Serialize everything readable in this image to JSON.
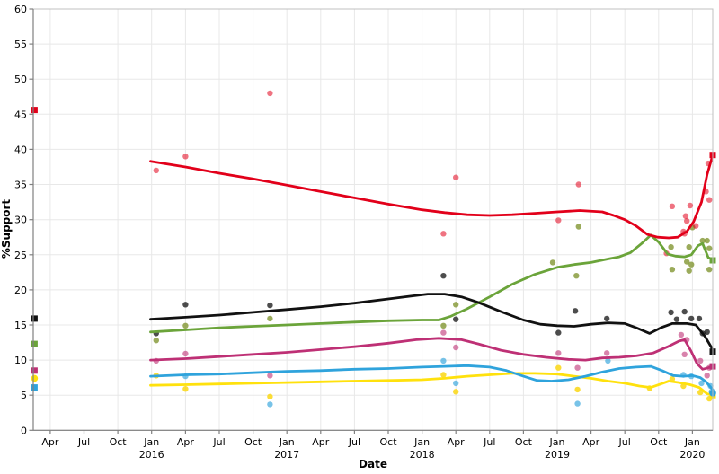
{
  "chart_data": {
    "type": "line",
    "title": "",
    "xlabel": "Date",
    "ylabel": "%Support",
    "x_unit_note": "x positions are months since Jan 2015",
    "x_domain": [
      1.49,
      61.8
    ],
    "ylim": [
      0,
      60
    ],
    "y_ticks": [
      0,
      5,
      10,
      15,
      20,
      25,
      30,
      35,
      40,
      45,
      50,
      55,
      60
    ],
    "x_ticks": [
      {
        "m": 3,
        "label": "Apr"
      },
      {
        "m": 6,
        "label": "Jul"
      },
      {
        "m": 9,
        "label": "Oct"
      },
      {
        "m": 12,
        "label": "Jan",
        "year": "2016"
      },
      {
        "m": 15,
        "label": "Apr"
      },
      {
        "m": 18,
        "label": "Jul"
      },
      {
        "m": 21,
        "label": "Oct"
      },
      {
        "m": 24,
        "label": "Jan",
        "year": "2017"
      },
      {
        "m": 27,
        "label": "Apr"
      },
      {
        "m": 30,
        "label": "Jul"
      },
      {
        "m": 33,
        "label": "Oct"
      },
      {
        "m": 36,
        "label": "Jan",
        "year": "2018"
      },
      {
        "m": 39,
        "label": "Apr"
      },
      {
        "m": 42,
        "label": "Jul"
      },
      {
        "m": 45,
        "label": "Oct"
      },
      {
        "m": 48,
        "label": "Jan",
        "year": "2019"
      },
      {
        "m": 51,
        "label": "Apr"
      },
      {
        "m": 54,
        "label": "Jul"
      },
      {
        "m": 57,
        "label": "Oct"
      },
      {
        "m": 60,
        "label": "Jan",
        "year": "2020"
      }
    ],
    "grid": true,
    "legend": "none",
    "colors": {
      "grid": "#e8e8e8",
      "border": "#c0c0c0",
      "axis": "#808080",
      "text": "#000000"
    },
    "election_x": {
      "left": 1.6,
      "right": 61.8
    },
    "series": [
      {
        "name": "yellow",
        "color": "#ffe10d",
        "dot_color": "rgba(250,215,20,0.85)",
        "result_left": 7.4,
        "result_left_shape": "circle",
        "result_right": 5.0,
        "result_right_shape": "square",
        "trend": [
          [
            11.9,
            6.4
          ],
          [
            15,
            6.5
          ],
          [
            18,
            6.6
          ],
          [
            21,
            6.7
          ],
          [
            24,
            6.8
          ],
          [
            27,
            6.9
          ],
          [
            30,
            7.0
          ],
          [
            33,
            7.1
          ],
          [
            36,
            7.2
          ],
          [
            38,
            7.4
          ],
          [
            40,
            7.7
          ],
          [
            42,
            7.9
          ],
          [
            44,
            8.1
          ],
          [
            46,
            8.1
          ],
          [
            48,
            8.0
          ],
          [
            49.5,
            7.7
          ],
          [
            51,
            7.4
          ],
          [
            52.5,
            7.0
          ],
          [
            54,
            6.7
          ],
          [
            55.3,
            6.3
          ],
          [
            56.3,
            6.1
          ],
          [
            57.2,
            6.6
          ],
          [
            57.9,
            7.0
          ],
          [
            58.8,
            6.8
          ],
          [
            59.8,
            6.5
          ],
          [
            60.6,
            6.1
          ],
          [
            61.3,
            5.2
          ],
          [
            61.8,
            5.0
          ]
        ],
        "polls": [
          [
            12.4,
            7.8
          ],
          [
            15,
            5.9
          ],
          [
            22.5,
            4.8
          ],
          [
            37.9,
            7.9
          ],
          [
            39,
            5.5
          ],
          [
            48.1,
            8.9
          ],
          [
            49.8,
            5.8
          ],
          [
            56.2,
            6.0
          ],
          [
            58.2,
            7.3
          ],
          [
            59.2,
            6.3
          ],
          [
            60.7,
            5.4
          ],
          [
            61.5,
            4.5
          ]
        ]
      },
      {
        "name": "blue",
        "color": "#2fa3dc",
        "dot_color": "rgba(47,163,220,0.65)",
        "result_left": 6.1,
        "result_left_shape": "square",
        "result_right": 5.3,
        "result_right_shape": "circle",
        "trend": [
          [
            11.9,
            7.7
          ],
          [
            15,
            7.9
          ],
          [
            18,
            8.0
          ],
          [
            21,
            8.2
          ],
          [
            24,
            8.4
          ],
          [
            27,
            8.5
          ],
          [
            30,
            8.7
          ],
          [
            33,
            8.8
          ],
          [
            36,
            9.0
          ],
          [
            38,
            9.1
          ],
          [
            40,
            9.2
          ],
          [
            42,
            9.0
          ],
          [
            43.5,
            8.5
          ],
          [
            45,
            7.7
          ],
          [
            46.2,
            7.1
          ],
          [
            47.5,
            7.0
          ],
          [
            49,
            7.2
          ],
          [
            50.5,
            7.7
          ],
          [
            52,
            8.3
          ],
          [
            53.5,
            8.8
          ],
          [
            55,
            9.0
          ],
          [
            56.3,
            9.1
          ],
          [
            57.3,
            8.5
          ],
          [
            58.3,
            7.8
          ],
          [
            59.2,
            7.7
          ],
          [
            60,
            7.8
          ],
          [
            60.7,
            7.5
          ],
          [
            61.2,
            6.9
          ],
          [
            61.8,
            5.8
          ]
        ],
        "polls": [
          [
            15,
            7.7
          ],
          [
            22.5,
            3.7
          ],
          [
            37.9,
            9.9
          ],
          [
            39,
            6.7
          ],
          [
            49.8,
            3.8
          ],
          [
            52.5,
            9.9
          ],
          [
            59.2,
            7.9
          ],
          [
            59.9,
            7.7
          ],
          [
            60.8,
            6.7
          ],
          [
            61.6,
            6.3
          ],
          [
            61.7,
            5.5
          ]
        ]
      },
      {
        "name": "magenta",
        "color": "#be3075",
        "dot_color": "rgba(190,48,117,0.6)",
        "result_left": 8.5,
        "result_left_shape": "square",
        "result_right": 9.1,
        "result_right_shape": "square",
        "trend": [
          [
            11.9,
            10.0
          ],
          [
            15,
            10.2
          ],
          [
            18,
            10.5
          ],
          [
            21,
            10.8
          ],
          [
            24,
            11.1
          ],
          [
            27,
            11.5
          ],
          [
            30,
            11.9
          ],
          [
            33,
            12.4
          ],
          [
            35.5,
            12.9
          ],
          [
            37.5,
            13.1
          ],
          [
            39.5,
            12.9
          ],
          [
            41,
            12.3
          ],
          [
            43,
            11.4
          ],
          [
            45,
            10.8
          ],
          [
            47,
            10.4
          ],
          [
            49,
            10.1
          ],
          [
            50.5,
            10.0
          ],
          [
            52,
            10.3
          ],
          [
            53.5,
            10.4
          ],
          [
            55,
            10.6
          ],
          [
            56.5,
            11.0
          ],
          [
            57.8,
            11.9
          ],
          [
            58.8,
            12.7
          ],
          [
            59.3,
            12.9
          ],
          [
            59.9,
            11.2
          ],
          [
            60.4,
            9.5
          ],
          [
            60.9,
            8.7
          ],
          [
            61.4,
            8.9
          ],
          [
            61.8,
            9.1
          ]
        ],
        "polls": [
          [
            12.4,
            9.9
          ],
          [
            15,
            10.9
          ],
          [
            22.5,
            7.8
          ],
          [
            37.9,
            13.9
          ],
          [
            39,
            11.8
          ],
          [
            48.1,
            11.0
          ],
          [
            49.8,
            8.9
          ],
          [
            52.4,
            11.0
          ],
          [
            59.0,
            13.6
          ],
          [
            59.3,
            10.8
          ],
          [
            59.5,
            12.9
          ],
          [
            60.7,
            9.9
          ],
          [
            61.3,
            7.8
          ],
          [
            61.5,
            8.9
          ]
        ]
      },
      {
        "name": "green",
        "color": "#6ba43a",
        "dot_color": "rgba(130,150,50,0.8)",
        "result_left": 12.3,
        "result_left_shape": "square",
        "result_right": 24.2,
        "result_right_shape": "square",
        "trend": [
          [
            11.9,
            14.0
          ],
          [
            15,
            14.3
          ],
          [
            18,
            14.6
          ],
          [
            21,
            14.8
          ],
          [
            24,
            15.0
          ],
          [
            27,
            15.2
          ],
          [
            30,
            15.4
          ],
          [
            33,
            15.6
          ],
          [
            36,
            15.7
          ],
          [
            37.5,
            15.7
          ],
          [
            38.5,
            16.2
          ],
          [
            40,
            17.3
          ],
          [
            42,
            19.0
          ],
          [
            44,
            20.8
          ],
          [
            46,
            22.2
          ],
          [
            48,
            23.2
          ],
          [
            49.5,
            23.6
          ],
          [
            51,
            23.9
          ],
          [
            52.5,
            24.4
          ],
          [
            53.5,
            24.7
          ],
          [
            54.5,
            25.3
          ],
          [
            55.5,
            26.6
          ],
          [
            56.3,
            27.8
          ],
          [
            57,
            26.8
          ],
          [
            57.8,
            25.1
          ],
          [
            58.5,
            24.8
          ],
          [
            59.3,
            24.7
          ],
          [
            59.9,
            25.0
          ],
          [
            60.5,
            26.3
          ],
          [
            60.9,
            26.6
          ],
          [
            61.4,
            24.6
          ],
          [
            61.8,
            24.3
          ]
        ],
        "polls": [
          [
            12.4,
            12.8
          ],
          [
            15,
            14.9
          ],
          [
            22.5,
            15.9
          ],
          [
            37.9,
            14.9
          ],
          [
            39,
            17.9
          ],
          [
            47.6,
            23.9
          ],
          [
            49.7,
            22.0
          ],
          [
            49.9,
            29.0
          ],
          [
            58.1,
            26.1
          ],
          [
            58.2,
            22.9
          ],
          [
            59.5,
            24.0
          ],
          [
            59.7,
            26.1
          ],
          [
            59.7,
            22.7
          ],
          [
            59.9,
            23.6
          ],
          [
            60.0,
            28.9
          ],
          [
            60.9,
            27.0
          ],
          [
            61.3,
            27.0
          ],
          [
            61.5,
            25.9
          ],
          [
            61.5,
            22.9
          ]
        ]
      },
      {
        "name": "black",
        "color": "#111111",
        "dot_color": "rgba(17,17,17,0.75)",
        "result_left": 15.9,
        "result_left_shape": "square",
        "result_right": 11.2,
        "result_right_shape": "square",
        "trend": [
          [
            11.9,
            15.8
          ],
          [
            15,
            16.1
          ],
          [
            18,
            16.4
          ],
          [
            21,
            16.8
          ],
          [
            24,
            17.2
          ],
          [
            27,
            17.6
          ],
          [
            30,
            18.1
          ],
          [
            33,
            18.7
          ],
          [
            35,
            19.1
          ],
          [
            36.5,
            19.4
          ],
          [
            38,
            19.4
          ],
          [
            39.5,
            19.0
          ],
          [
            41,
            18.2
          ],
          [
            43,
            16.9
          ],
          [
            45,
            15.7
          ],
          [
            46.5,
            15.1
          ],
          [
            48,
            14.9
          ],
          [
            49.5,
            14.8
          ],
          [
            51,
            15.1
          ],
          [
            52.5,
            15.3
          ],
          [
            54,
            15.2
          ],
          [
            55,
            14.6
          ],
          [
            56.2,
            13.8
          ],
          [
            57.2,
            14.6
          ],
          [
            58.2,
            15.2
          ],
          [
            59.5,
            15.2
          ],
          [
            60.3,
            15.0
          ],
          [
            61.1,
            13.4
          ],
          [
            61.8,
            11.5
          ]
        ],
        "polls": [
          [
            12.4,
            13.8
          ],
          [
            15,
            17.9
          ],
          [
            22.5,
            17.8
          ],
          [
            37.9,
            22.0
          ],
          [
            39,
            15.8
          ],
          [
            48.1,
            13.9
          ],
          [
            49.6,
            17.0
          ],
          [
            52.4,
            15.9
          ],
          [
            58.1,
            16.8
          ],
          [
            58.6,
            15.8
          ],
          [
            59.3,
            16.9
          ],
          [
            59.9,
            15.9
          ],
          [
            60.6,
            15.9
          ],
          [
            60.9,
            13.8
          ],
          [
            61.3,
            14.0
          ]
        ]
      },
      {
        "name": "red",
        "color": "#e2001a",
        "dot_color": "rgba(226,0,26,0.55)",
        "result_left": 45.6,
        "result_left_shape": "square",
        "result_right": 39.2,
        "result_right_shape": "square",
        "trend": [
          [
            11.9,
            38.3
          ],
          [
            15,
            37.5
          ],
          [
            18,
            36.6
          ],
          [
            21,
            35.8
          ],
          [
            24,
            34.9
          ],
          [
            27,
            34.0
          ],
          [
            30,
            33.1
          ],
          [
            33,
            32.2
          ],
          [
            36,
            31.4
          ],
          [
            38,
            31.0
          ],
          [
            40,
            30.7
          ],
          [
            42,
            30.6
          ],
          [
            44,
            30.7
          ],
          [
            46,
            30.9
          ],
          [
            48,
            31.1
          ],
          [
            50,
            31.3
          ],
          [
            52,
            31.1
          ],
          [
            53,
            30.6
          ],
          [
            54,
            30.0
          ],
          [
            55,
            29.1
          ],
          [
            56,
            27.9
          ],
          [
            56.9,
            27.5
          ],
          [
            57.9,
            27.4
          ],
          [
            58.7,
            27.5
          ],
          [
            59.5,
            28.3
          ],
          [
            60.1,
            29.7
          ],
          [
            60.8,
            32.5
          ],
          [
            61.3,
            36.4
          ],
          [
            61.8,
            39.2
          ]
        ],
        "polls": [
          [
            12.4,
            37.0
          ],
          [
            15,
            39.0
          ],
          [
            22.5,
            48.0
          ],
          [
            37.9,
            28.0
          ],
          [
            39,
            36.0
          ],
          [
            48.1,
            29.9
          ],
          [
            49.9,
            35.0
          ],
          [
            57.7,
            25.2
          ],
          [
            58.2,
            31.9
          ],
          [
            59.2,
            28.3
          ],
          [
            59.3,
            28.0
          ],
          [
            59.4,
            30.5
          ],
          [
            59.5,
            29.8
          ],
          [
            59.8,
            32.0
          ],
          [
            60.3,
            29.1
          ],
          [
            61.2,
            34.0
          ],
          [
            61.4,
            38.0
          ],
          [
            61.5,
            32.8
          ]
        ]
      }
    ]
  }
}
